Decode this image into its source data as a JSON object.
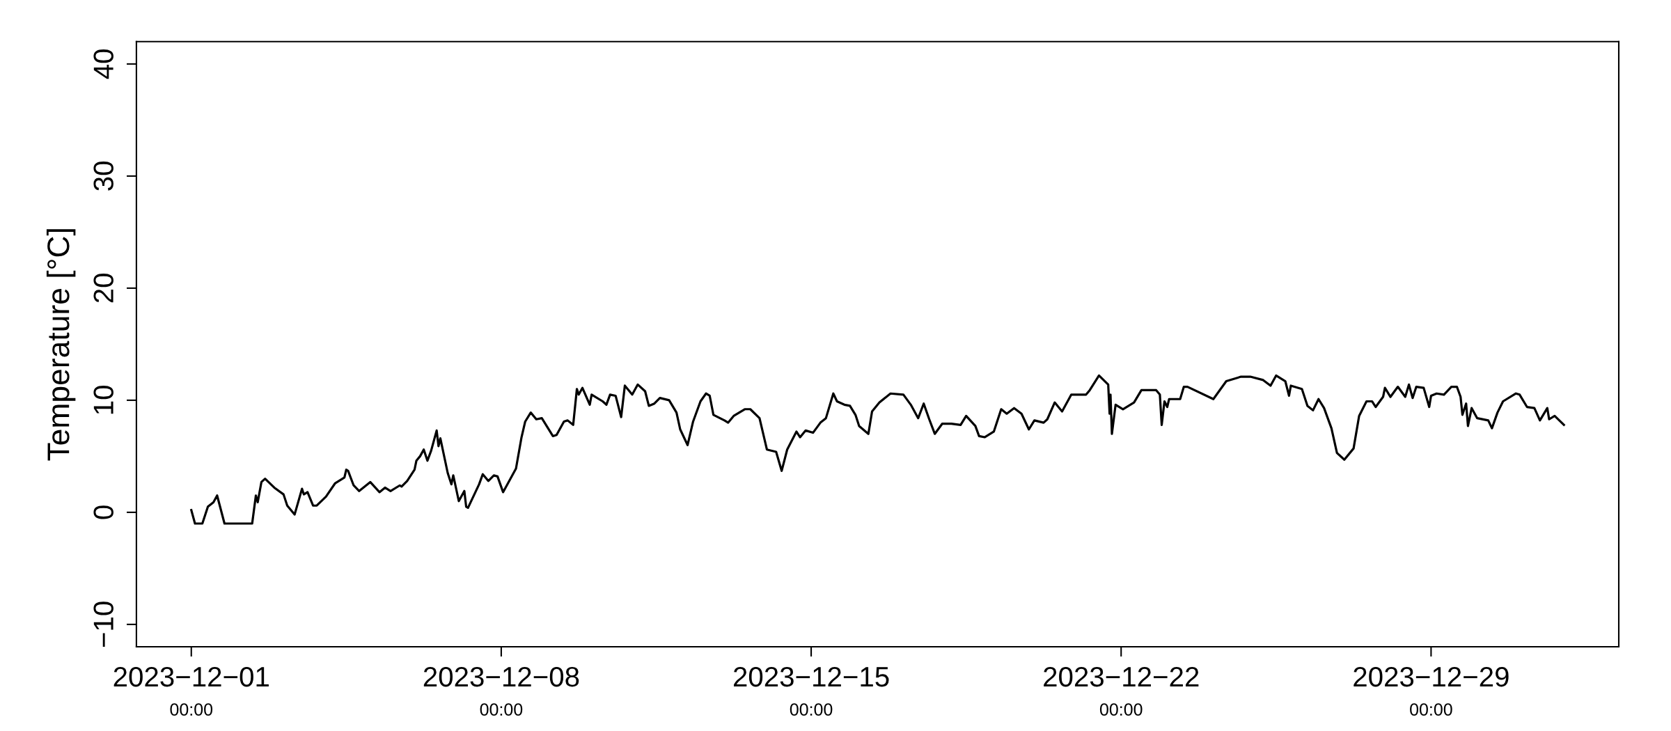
{
  "chart_data": {
    "type": "line",
    "ylabel": "Temperature [°C]",
    "xlim": [
      "2023-11-29T18:15",
      "2024-01-02T05:45"
    ],
    "xticks": [
      {
        "value": "2023-12-01T00:00",
        "label": "2023−12−01\n00:00"
      },
      {
        "value": "2023-12-08T00:00",
        "label": "2023−12−08\n00:00"
      },
      {
        "value": "2023-12-15T00:00",
        "label": "2023−12−15\n00:00"
      },
      {
        "value": "2023-12-22T00:00",
        "label": "2023−12−22\n00:00"
      },
      {
        "value": "2023-12-29T00:00",
        "label": "2023−12−29\n00:00"
      }
    ],
    "ylim": [
      -12,
      42
    ],
    "yticks": [
      {
        "value": -10,
        "label": "−10"
      },
      0,
      10,
      20,
      30,
      40
    ],
    "grid": false,
    "marker": "none",
    "line_style": "solid",
    "series": [
      {
        "color": "#000000",
        "x": [
          "2023-12-01T00:00",
          "2023-12-01T02:00",
          "2023-12-01T06:00",
          "2023-12-01T09:00",
          "2023-12-01T12:00",
          "2023-12-01T14:00",
          "2023-12-01T18:00",
          "2023-12-02T09:00",
          "2023-12-02T11:00",
          "2023-12-02T12:00",
          "2023-12-02T14:00",
          "2023-12-02T16:00",
          "2023-12-02T21:00",
          "2023-12-03T02:00",
          "2023-12-03T04:00",
          "2023-12-03T08:00",
          "2023-12-03T12:00",
          "2023-12-03T13:00",
          "2023-12-03T15:00",
          "2023-12-03T18:00",
          "2023-12-03T20:00",
          "2023-12-04T01:00",
          "2023-12-04T06:00",
          "2023-12-04T11:00",
          "2023-12-04T12:00",
          "2023-12-04T13:00",
          "2023-12-04T16:00",
          "2023-12-04T19:00",
          "2023-12-05T01:00",
          "2023-12-05T06:00",
          "2023-12-05T09:00",
          "2023-12-05T12:00",
          "2023-12-05T17:00",
          "2023-12-05T18:00",
          "2023-12-05T21:00",
          "2023-12-06T01:00",
          "2023-12-06T02:00",
          "2023-12-06T04:00",
          "2023-12-06T06:00",
          "2023-12-06T08:00",
          "2023-12-06T10:00",
          "2023-12-06T13:00",
          "2023-12-06T14:00",
          "2023-12-06T15:00",
          "2023-12-06T19:00",
          "2023-12-06T21:00",
          "2023-12-06T22:00",
          "2023-12-07T01:00",
          "2023-12-07T04:00",
          "2023-12-07T05:00",
          "2023-12-07T06:00",
          "2023-12-07T12:00",
          "2023-12-07T14:00",
          "2023-12-07T17:00",
          "2023-12-07T20:00",
          "2023-12-07T22:00",
          "2023-12-08T01:00",
          "2023-12-08T08:00",
          "2023-12-08T11:00",
          "2023-12-08T13:00",
          "2023-12-08T16:00",
          "2023-12-08T19:00",
          "2023-12-08T22:00",
          "2023-12-09T04:00",
          "2023-12-09T06:00",
          "2023-12-09T10:00",
          "2023-12-09T12:00",
          "2023-12-09T15:00",
          "2023-12-09T17:00",
          "2023-12-09T18:00",
          "2023-12-09T20:00",
          "2023-12-10T00:00",
          "2023-12-10T01:00",
          "2023-12-10T07:00",
          "2023-12-10T09:00",
          "2023-12-10T11:00",
          "2023-12-10T14:00",
          "2023-12-10T17:00",
          "2023-12-10T19:00",
          "2023-12-10T23:00",
          "2023-12-11T02:00",
          "2023-12-11T06:00",
          "2023-12-11T08:00",
          "2023-12-11T11:00",
          "2023-12-11T14:00",
          "2023-12-11T19:00",
          "2023-12-11T23:00",
          "2023-12-12T01:00",
          "2023-12-12T05:00",
          "2023-12-12T08:00",
          "2023-12-12T12:00",
          "2023-12-12T15:00",
          "2023-12-12T17:00",
          "2023-12-12T19:00",
          "2023-12-13T01:00",
          "2023-12-13T03:00",
          "2023-12-13T06:00",
          "2023-12-13T12:00",
          "2023-12-13T15:00",
          "2023-12-13T20:00",
          "2023-12-14T00:00",
          "2023-12-14T05:00",
          "2023-12-14T08:00",
          "2023-12-14T11:00",
          "2023-12-14T16:00",
          "2023-12-14T18:00",
          "2023-12-14T21:00",
          "2023-12-15T01:00",
          "2023-12-15T05:00",
          "2023-12-15T08:00",
          "2023-12-15T12:00",
          "2023-12-15T14:00",
          "2023-12-15T18:00",
          "2023-12-15T21:00",
          "2023-12-16T00:00",
          "2023-12-16T02:00",
          "2023-12-16T07:00",
          "2023-12-16T09:00",
          "2023-12-16T13:00",
          "2023-12-16T19:00",
          "2023-12-17T02:00",
          "2023-12-17T06:00",
          "2023-12-17T10:00",
          "2023-12-17T13:00",
          "2023-12-17T16:00",
          "2023-12-17T19:00",
          "2023-12-17T23:00",
          "2023-12-18T04:00",
          "2023-12-18T09:00",
          "2023-12-18T12:00",
          "2023-12-18T17:00",
          "2023-12-18T19:00",
          "2023-12-18T22:00",
          "2023-12-19T03:00",
          "2023-12-19T07:00",
          "2023-12-19T10:00",
          "2023-12-19T14:00",
          "2023-12-19T18:00",
          "2023-12-19T22:00",
          "2023-12-20T01:00",
          "2023-12-20T06:00",
          "2023-12-20T08:00",
          "2023-12-20T12:00",
          "2023-12-20T16:00",
          "2023-12-20T21:00",
          "2023-12-21T05:00",
          "2023-12-21T07:00",
          "2023-12-21T12:00",
          "2023-12-21T17:00",
          "2023-12-21T17:45",
          "2023-12-21T18:15",
          "2023-12-21T19:00",
          "2023-12-21T21:00",
          "2023-12-22T01:00",
          "2023-12-22T07:00",
          "2023-12-22T11:00",
          "2023-12-22T19:00",
          "2023-12-22T21:00",
          "2023-12-22T22:00",
          "2023-12-22T23:30",
          "2023-12-23T01:00",
          "2023-12-23T02:00",
          "2023-12-23T08:00",
          "2023-12-23T10:00",
          "2023-12-23T12:00",
          "2023-12-24T02:00",
          "2023-12-24T09:00",
          "2023-12-24T17:00",
          "2023-12-24T22:00",
          "2023-12-25T05:00",
          "2023-12-25T09:00",
          "2023-12-25T12:00",
          "2023-12-25T17:00",
          "2023-12-25T19:00",
          "2023-12-25T20:00",
          "2023-12-26T02:00",
          "2023-12-26T05:00",
          "2023-12-26T08:00",
          "2023-12-26T11:00",
          "2023-12-26T14:00",
          "2023-12-26T18:00",
          "2023-12-26T21:00",
          "2023-12-27T01:00",
          "2023-12-27T06:00",
          "2023-12-27T09:00",
          "2023-12-27T13:00",
          "2023-12-27T16:00",
          "2023-12-27T18:00",
          "2023-12-27T22:00",
          "2023-12-27T23:00",
          "2023-12-28T02:00",
          "2023-12-28T06:00",
          "2023-12-28T10:00",
          "2023-12-28T12:00",
          "2023-12-28T14:00",
          "2023-12-28T16:00",
          "2023-12-28T20:00",
          "2023-12-28T23:00",
          "2023-12-29T00:00",
          "2023-12-29T03:00",
          "2023-12-29T07:00",
          "2023-12-29T11:00",
          "2023-12-29T14:00",
          "2023-12-29T16:00",
          "2023-12-29T17:00",
          "2023-12-29T19:00",
          "2023-12-29T20:00",
          "2023-12-29T22:00",
          "2023-12-30T01:00",
          "2023-12-30T07:00",
          "2023-12-30T09:00",
          "2023-12-30T12:00",
          "2023-12-30T15:00",
          "2023-12-30T22:00",
          "2023-12-31T00:00",
          "2023-12-31T04:00",
          "2023-12-31T08:00",
          "2023-12-31T11:00",
          "2023-12-31T15:00",
          "2023-12-31T16:00",
          "2023-12-31T19:00",
          "2024-01-01T00:00"
        ],
        "values": [
          0.2,
          -1,
          -1,
          0.5,
          0.9,
          1.5,
          -1,
          -1,
          1.5,
          0.9,
          2.7,
          3.0,
          2.2,
          1.6,
          0.6,
          -0.2,
          2.1,
          1.6,
          1.8,
          0.6,
          0.6,
          1.4,
          2.6,
          3.1,
          3.8,
          3.7,
          2.4,
          1.9,
          2.7,
          1.8,
          2.2,
          1.9,
          2.4,
          2.3,
          2.8,
          3.8,
          4.6,
          5.0,
          5.6,
          4.6,
          5.5,
          7.3,
          5.9,
          6.6,
          3.5,
          2.5,
          3.3,
          1.0,
          1.9,
          0.5,
          0.4,
          2.5,
          3.4,
          2.8,
          3.3,
          3.2,
          1.8,
          3.9,
          6.7,
          8.1,
          8.9,
          8.3,
          8.4,
          6.8,
          6.9,
          8.1,
          8.2,
          7.8,
          11.0,
          10.5,
          11.1,
          9.6,
          10.5,
          9.9,
          9.6,
          10.5,
          10.4,
          8.5,
          11.3,
          10.5,
          11.4,
          10.8,
          9.5,
          9.7,
          10.2,
          10.0,
          8.9,
          7.4,
          6.0,
          8.1,
          9.9,
          10.6,
          10.4,
          8.7,
          8.2,
          8.0,
          8.6,
          9.2,
          9.2,
          8.4,
          5.6,
          5.4,
          3.7,
          5.6,
          7.2,
          6.7,
          7.3,
          7.1,
          8.0,
          8.4,
          10.6,
          9.9,
          9.6,
          9.5,
          8.7,
          7.7,
          7.0,
          9.0,
          9.8,
          10.6,
          10.5,
          9.6,
          8.4,
          9.7,
          8.3,
          7.0,
          7.9,
          7.9,
          7.8,
          8.6,
          7.7,
          6.8,
          6.7,
          7.2,
          9.2,
          8.8,
          9.3,
          8.8,
          7.4,
          8.2,
          8.0,
          8.3,
          9.8,
          9.0,
          10.5,
          10.5,
          10.9,
          12.2,
          11.4,
          8.8,
          10.5,
          7.0,
          9.6,
          9.2,
          9.8,
          10.9,
          10.9,
          10.5,
          7.8,
          9.9,
          9.4,
          10.1,
          10.1,
          11.2,
          11.2,
          10.1,
          11.7,
          12.1,
          12.1,
          11.8,
          11.3,
          12.2,
          11.7,
          10.4,
          11.3,
          11.0,
          9.5,
          9.1,
          10.1,
          9.3,
          7.5,
          5.3,
          4.7,
          5.7,
          8.6,
          9.9,
          9.9,
          9.4,
          10.3,
          11.1,
          10.3,
          11.2,
          10.3,
          11.4,
          10.2,
          11.2,
          11.1,
          9.4,
          10.4,
          10.6,
          10.5,
          11.2,
          11.2,
          10.3,
          8.7,
          9.7,
          7.7,
          9.3,
          8.4,
          8.2,
          7.5,
          8.9,
          9.9,
          10.6,
          10.5,
          9.4,
          9.3,
          8.2,
          9.3,
          8.3,
          8.6,
          7.8
        ]
      }
    ]
  }
}
